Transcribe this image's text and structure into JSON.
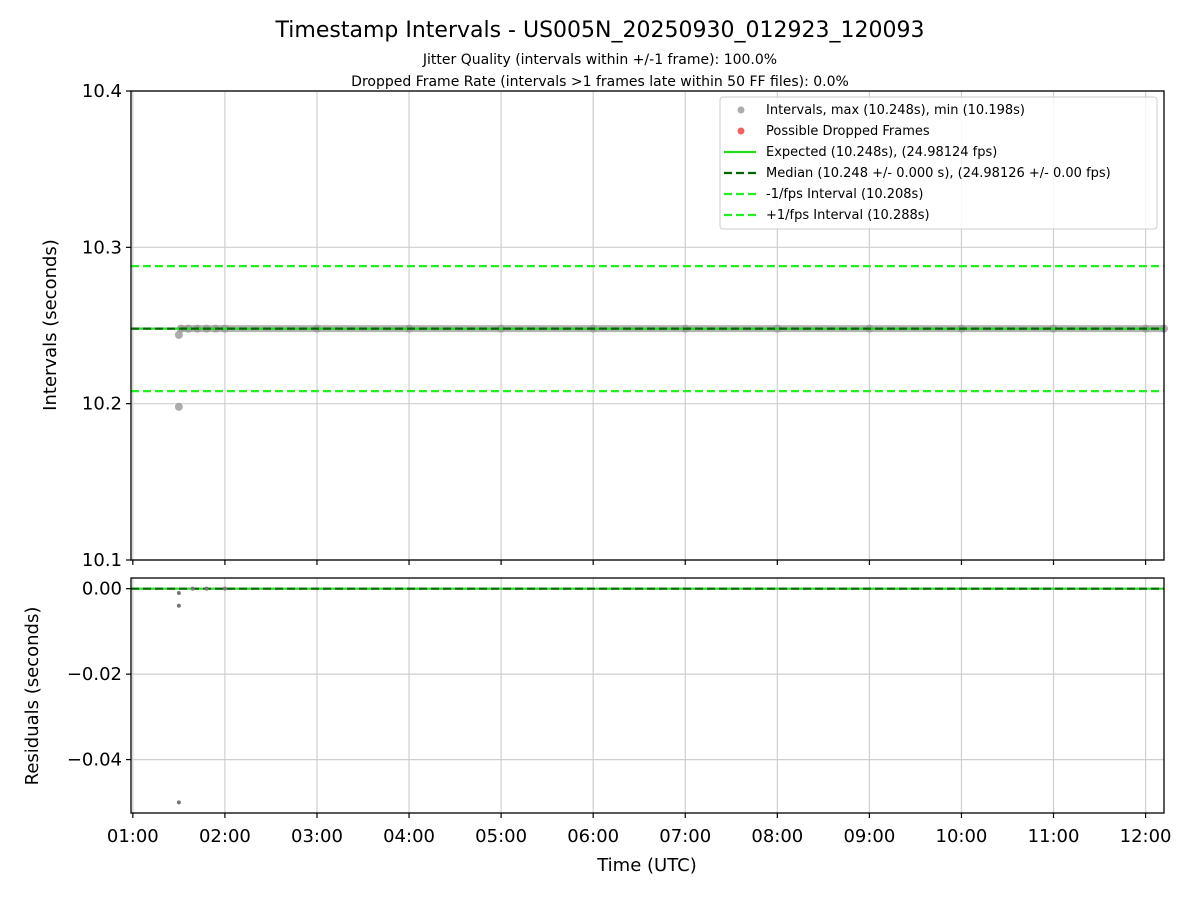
{
  "chart_data": {
    "type": "scatter",
    "title": "Timestamp Intervals - US005N_20250930_012923_120093",
    "subtitle_lines": [
      "Jitter Quality (intervals within +/-1 frame): 100.0%",
      "Dropped Frame Rate (intervals >1 frames late within 50 FF files): 0.0%"
    ],
    "xlabel": "Time (UTC)",
    "x_tick_labels": [
      "01:00",
      "02:00",
      "03:00",
      "04:00",
      "05:00",
      "06:00",
      "07:00",
      "08:00",
      "09:00",
      "10:00",
      "11:00",
      "12:00"
    ],
    "xlim_hours": [
      0.98,
      12.2
    ],
    "grid": true,
    "legend_position": "top-right",
    "top_panel": {
      "ylabel": "Intervals (seconds)",
      "ylim": [
        10.1,
        10.4
      ],
      "y_ticks": [
        "10.1",
        "10.2",
        "10.3",
        "10.4"
      ],
      "series": [
        {
          "name": "Intervals, max (10.248s), min (10.198s)",
          "kind": "scatter",
          "color": "#999999",
          "points": [
            [
              1.5,
              10.198
            ],
            [
              1.5,
              10.244
            ],
            [
              1.52,
              10.248
            ],
            [
              1.6,
              10.248
            ],
            [
              1.7,
              10.248
            ],
            [
              1.8,
              10.248
            ],
            [
              1.9,
              10.248
            ],
            [
              2.0,
              10.248
            ],
            [
              3.0,
              10.248
            ],
            [
              4.0,
              10.248
            ],
            [
              5.0,
              10.248
            ],
            [
              6.0,
              10.248
            ],
            [
              7.0,
              10.248
            ],
            [
              8.0,
              10.248
            ],
            [
              9.0,
              10.248
            ],
            [
              10.0,
              10.248
            ],
            [
              11.0,
              10.248
            ],
            [
              12.0,
              10.248
            ],
            [
              12.2,
              10.248
            ]
          ]
        },
        {
          "name": "Possible Dropped Frames",
          "kind": "scatter",
          "color": "#f06262",
          "points": []
        },
        {
          "name": "Expected (10.248s), (24.98124 fps)",
          "kind": "hline",
          "y": 10.248,
          "color": "#22dd22",
          "dash": "solid"
        },
        {
          "name": "Median (10.248 +/- 0.000 s), (24.98126 +/- 0.00 fps)",
          "kind": "hline",
          "y": 10.248,
          "color": "#006400",
          "dash": "dashed"
        },
        {
          "name": "-1/fps Interval (10.208s)",
          "kind": "hline",
          "y": 10.208,
          "color": "#22ee22",
          "dash": "dashed"
        },
        {
          "name": "+1/fps Interval (10.288s)",
          "kind": "hline",
          "y": 10.288,
          "color": "#22ee22",
          "dash": "dashed"
        }
      ]
    },
    "bottom_panel": {
      "ylabel": "Residuals (seconds)",
      "ylim": [
        -0.0525,
        0.0025
      ],
      "y_ticks": [
        "0.00",
        "−0.02",
        "−0.04"
      ],
      "y_tick_values": [
        0.0,
        -0.02,
        -0.04
      ],
      "series": [
        {
          "name": "Residuals",
          "kind": "scatter",
          "color": "#777777",
          "points": [
            [
              1.5,
              -0.05
            ],
            [
              1.5,
              -0.004
            ],
            [
              1.5,
              -0.001
            ],
            [
              1.65,
              0.0
            ],
            [
              1.8,
              0.0
            ],
            [
              2.0,
              0.0
            ]
          ]
        },
        {
          "name": "Zero residual",
          "kind": "hline",
          "y": 0.0,
          "color": "#22dd22",
          "dash": "solid"
        },
        {
          "name": "Median residual",
          "kind": "hline",
          "y": 0.0,
          "color": "#006400",
          "dash": "dashed"
        }
      ]
    }
  }
}
